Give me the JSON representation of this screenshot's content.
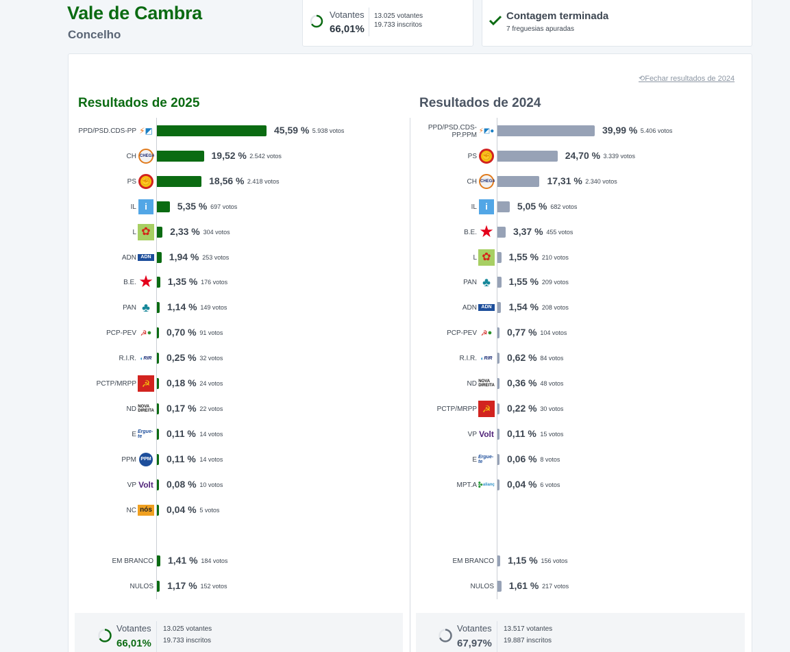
{
  "header": {
    "title": "Vale de Cambra",
    "subtitle": "Concelho"
  },
  "turnout_card": {
    "label": "Votantes",
    "pct": "66,01%",
    "pct_value": 66.01,
    "votantes": "13.025 votantes",
    "inscritos": "19.733 inscritos"
  },
  "count_card": {
    "title": "Contagem terminada",
    "subtitle": "7 freguesias apuradas"
  },
  "close_link": "Fechar resultados de 2024",
  "colors": {
    "green": "#0b6b12",
    "grey": "#97a2b6"
  },
  "left": {
    "title": "Resultados de 2025",
    "max": 45.59,
    "parties": [
      {
        "name": "PPD/PSD.CDS-PP",
        "pct": "45,59 %",
        "value": 45.59,
        "votos": "5.938 votos",
        "icon": "psd-cds-logo"
      },
      {
        "name": "CH",
        "pct": "19,52 %",
        "value": 19.52,
        "votos": "2.542 votos",
        "icon": "chega-logo"
      },
      {
        "name": "PS",
        "pct": "18,56 %",
        "value": 18.56,
        "votos": "2.418 votos",
        "icon": "ps-logo"
      },
      {
        "name": "IL",
        "pct": "5,35 %",
        "value": 5.35,
        "votos": "697 votos",
        "icon": "il-logo"
      },
      {
        "name": "L",
        "pct": "2,33 %",
        "value": 2.33,
        "votos": "304 votos",
        "icon": "livre-logo"
      },
      {
        "name": "ADN",
        "pct": "1,94 %",
        "value": 1.94,
        "votos": "253 votos",
        "icon": "adn-logo"
      },
      {
        "name": "B.E.",
        "pct": "1,35 %",
        "value": 1.35,
        "votos": "176 votos",
        "icon": "be-logo"
      },
      {
        "name": "PAN",
        "pct": "1,14 %",
        "value": 1.14,
        "votos": "149 votos",
        "icon": "pan-logo"
      },
      {
        "name": "PCP-PEV",
        "pct": "0,70 %",
        "value": 0.7,
        "votos": "91 votos",
        "icon": "pcp-pev-logo"
      },
      {
        "name": "R.I.R.",
        "pct": "0,25 %",
        "value": 0.25,
        "votos": "32 votos",
        "icon": "rir-logo"
      },
      {
        "name": "PCTP/MRPP",
        "pct": "0,18 %",
        "value": 0.18,
        "votos": "24 votos",
        "icon": "pctp-logo"
      },
      {
        "name": "ND",
        "pct": "0,17 %",
        "value": 0.17,
        "votos": "22 votos",
        "icon": "nd-logo"
      },
      {
        "name": "E",
        "pct": "0,11 %",
        "value": 0.11,
        "votos": "14 votos",
        "icon": "ergue-te-logo"
      },
      {
        "name": "PPM",
        "pct": "0,11 %",
        "value": 0.11,
        "votos": "14 votos",
        "icon": "ppm-logo"
      },
      {
        "name": "VP",
        "pct": "0,08 %",
        "value": 0.08,
        "votos": "10 votos",
        "icon": "volt-logo"
      },
      {
        "name": "NC",
        "pct": "0,04 %",
        "value": 0.04,
        "votos": "5 votos",
        "icon": "nc-logo"
      }
    ],
    "blank": {
      "name": "EM BRANCO",
      "pct": "1,41 %",
      "value": 1.41,
      "votos": "184 votos"
    },
    "null": {
      "name": "NULOS",
      "pct": "1,17 %",
      "value": 1.17,
      "votos": "152 votos"
    },
    "footer": {
      "label": "Votantes",
      "pct": "66,01%",
      "pct_value": 66.01,
      "votantes": "13.025 votantes",
      "inscritos": "19.733 inscritos"
    }
  },
  "right": {
    "title": "Resultados de 2024",
    "max": 39.99,
    "parties": [
      {
        "name": "PPD/PSD.CDS-PP.PPM",
        "pct": "39,99 %",
        "value": 39.99,
        "votos": "5.406 votos",
        "icon": "psd-cds-ppm-logo"
      },
      {
        "name": "PS",
        "pct": "24,70 %",
        "value": 24.7,
        "votos": "3.339 votos",
        "icon": "ps-logo"
      },
      {
        "name": "CH",
        "pct": "17,31 %",
        "value": 17.31,
        "votos": "2.340 votos",
        "icon": "chega-logo"
      },
      {
        "name": "IL",
        "pct": "5,05 %",
        "value": 5.05,
        "votos": "682 votos",
        "icon": "il-logo"
      },
      {
        "name": "B.E.",
        "pct": "3,37 %",
        "value": 3.37,
        "votos": "455 votos",
        "icon": "be-logo"
      },
      {
        "name": "L",
        "pct": "1,55 %",
        "value": 1.55,
        "votos": "210 votos",
        "icon": "livre-logo"
      },
      {
        "name": "PAN",
        "pct": "1,55 %",
        "value": 1.55,
        "votos": "209 votos",
        "icon": "pan-logo"
      },
      {
        "name": "ADN",
        "pct": "1,54 %",
        "value": 1.54,
        "votos": "208 votos",
        "icon": "adn-logo"
      },
      {
        "name": "PCP-PEV",
        "pct": "0,77 %",
        "value": 0.77,
        "votos": "104 votos",
        "icon": "pcp-pev-logo"
      },
      {
        "name": "R.I.R.",
        "pct": "0,62 %",
        "value": 0.62,
        "votos": "84 votos",
        "icon": "rir-logo"
      },
      {
        "name": "ND",
        "pct": "0,36 %",
        "value": 0.36,
        "votos": "48 votos",
        "icon": "nd-logo"
      },
      {
        "name": "PCTP/MRPP",
        "pct": "0,22 %",
        "value": 0.22,
        "votos": "30 votos",
        "icon": "pctp-logo"
      },
      {
        "name": "VP",
        "pct": "0,11 %",
        "value": 0.11,
        "votos": "15 votos",
        "icon": "volt-logo"
      },
      {
        "name": "E",
        "pct": "0,06 %",
        "value": 0.06,
        "votos": "8 votos",
        "icon": "ergue-te-logo"
      },
      {
        "name": "MPT.A",
        "pct": "0,04 %",
        "value": 0.04,
        "votos": "6 votos",
        "icon": "mpt-alianca-logo"
      }
    ],
    "blank": {
      "name": "EM BRANCO",
      "pct": "1,15 %",
      "value": 1.15,
      "votos": "156 votos"
    },
    "null": {
      "name": "NULOS",
      "pct": "1,61 %",
      "value": 1.61,
      "votos": "217 votos"
    },
    "footer": {
      "label": "Votantes",
      "pct": "67,97%",
      "pct_value": 67.97,
      "votantes": "13.517 votantes",
      "inscritos": "19.887 inscritos"
    }
  }
}
